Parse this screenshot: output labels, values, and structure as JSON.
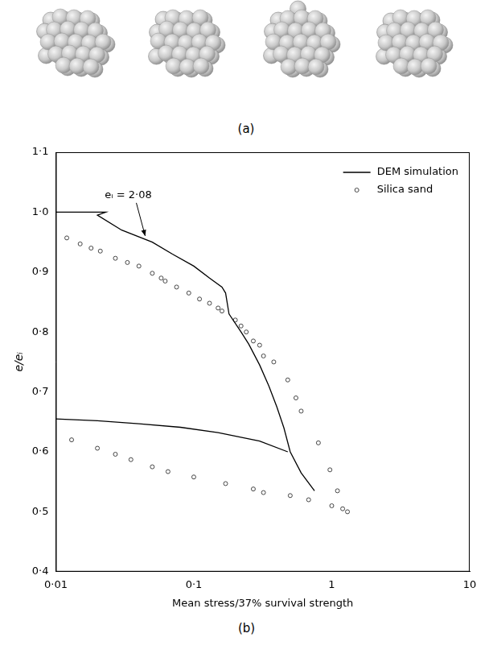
{
  "panel_a": {
    "caption": "(a)"
  },
  "chart_data": {
    "type": "scatter",
    "caption": "(b)",
    "x_label": "Mean stress/37% survival strength",
    "y_label": "e/eᵢ",
    "log": "x",
    "grid": false,
    "legend": "upper right",
    "xlim": [
      0.01,
      10
    ],
    "xticks": [
      {
        "value": 0.01,
        "label": "0·01"
      },
      {
        "value": 0.1,
        "label": "0·1"
      },
      1,
      10
    ],
    "ylim": [
      0.4,
      1.1
    ],
    "yticks": [
      {
        "value": 0.4,
        "label": "0·4"
      },
      {
        "value": 0.5,
        "label": "0·5"
      },
      {
        "value": 0.6,
        "label": "0·6"
      },
      {
        "value": 0.7,
        "label": "0·7"
      },
      {
        "value": 0.8,
        "label": "0·8"
      },
      {
        "value": 0.9,
        "label": "0·9"
      },
      {
        "value": 1.0,
        "label": "1·0"
      },
      {
        "value": 1.1,
        "label": "1·1"
      }
    ],
    "annotations": [
      {
        "text": "eᵢ = 2·08",
        "x": 0.045,
        "y": 0.955
      }
    ],
    "series": [
      {
        "name": "DEM simulation",
        "color": "#000000",
        "marker": "none",
        "line_style": "solid",
        "x": [
          0.01,
          0.019,
          0.023,
          0.02,
          0.03,
          0.05,
          0.07,
          0.1,
          0.13,
          0.16,
          0.17,
          0.18,
          0.22,
          0.25,
          0.3,
          0.35,
          0.4,
          0.45,
          0.5,
          0.6,
          0.75,
          null,
          0.48,
          0.3,
          0.15,
          0.08,
          0.04,
          0.02,
          0.01
        ],
        "values": [
          1.0,
          1.0,
          1.0,
          0.995,
          0.97,
          0.95,
          0.93,
          0.91,
          0.89,
          0.875,
          0.865,
          0.83,
          0.8,
          0.78,
          0.745,
          0.71,
          0.675,
          0.64,
          0.6,
          0.565,
          0.535,
          null,
          0.6,
          0.618,
          0.632,
          0.641,
          0.647,
          0.652,
          0.655
        ]
      },
      {
        "name": "Silica sand",
        "color": "#444444",
        "marker": "circle",
        "line_style": "none",
        "x": [
          0.012,
          0.015,
          0.018,
          0.021,
          0.027,
          0.033,
          0.04,
          0.05,
          0.058,
          0.062,
          0.075,
          0.092,
          0.11,
          0.13,
          0.15,
          0.16,
          0.2,
          0.22,
          0.24,
          0.27,
          0.3,
          0.32,
          0.38,
          0.48,
          0.55,
          0.6,
          0.8,
          0.97,
          1.0,
          1.1,
          1.2,
          1.3,
          0.013,
          0.02,
          0.027,
          0.035,
          0.05,
          0.065,
          0.1,
          0.17,
          0.27,
          0.32,
          0.5,
          0.68
        ],
        "values": [
          0.957,
          0.947,
          0.94,
          0.935,
          0.923,
          0.916,
          0.91,
          0.898,
          0.89,
          0.885,
          0.875,
          0.865,
          0.855,
          0.848,
          0.84,
          0.835,
          0.82,
          0.81,
          0.8,
          0.785,
          0.778,
          0.76,
          0.75,
          0.72,
          0.69,
          0.668,
          0.615,
          0.57,
          0.51,
          0.535,
          0.505,
          0.5,
          0.62,
          0.606,
          0.596,
          0.587,
          0.575,
          0.567,
          0.558,
          0.547,
          0.538,
          0.532,
          0.527,
          0.52
        ]
      }
    ]
  }
}
